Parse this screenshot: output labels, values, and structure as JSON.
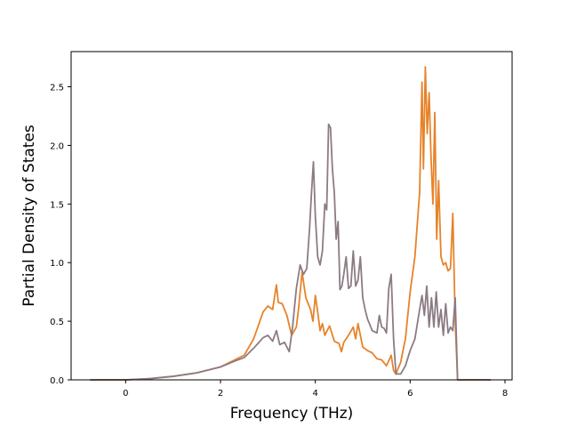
{
  "chart_data": {
    "type": "line",
    "title": "",
    "xlabel": "Frequency (THz)",
    "ylabel": "Partial Density of States",
    "xlim": [
      -1.15,
      8.15
    ],
    "ylim": [
      0.0,
      2.8
    ],
    "xticks": [
      0,
      2,
      4,
      6,
      8
    ],
    "yticks": [
      0.0,
      0.5,
      1.0,
      1.5,
      2.0,
      2.5
    ],
    "xtick_labels": [
      "0",
      "2",
      "4",
      "6",
      "8"
    ],
    "ytick_labels": [
      "0.0",
      "0.5",
      "1.0",
      "1.5",
      "2.0",
      "2.5"
    ],
    "grid": false,
    "legend": "none",
    "series": [
      {
        "color": "#e6832a",
        "x": [
          -0.75,
          0.0,
          0.5,
          1.0,
          1.5,
          2.0,
          2.3,
          2.5,
          2.7,
          2.9,
          3.0,
          3.1,
          3.18,
          3.22,
          3.3,
          3.4,
          3.5,
          3.6,
          3.65,
          3.72,
          3.8,
          3.9,
          3.95,
          4.0,
          4.05,
          4.1,
          4.15,
          4.2,
          4.3,
          4.4,
          4.5,
          4.55,
          4.6,
          4.7,
          4.8,
          4.85,
          4.9,
          5.0,
          5.1,
          5.2,
          5.3,
          5.4,
          5.5,
          5.6,
          5.65,
          5.7,
          5.8,
          5.9,
          6.0,
          6.1,
          6.2,
          6.25,
          6.28,
          6.32,
          6.36,
          6.4,
          6.44,
          6.48,
          6.52,
          6.56,
          6.6,
          6.65,
          6.7,
          6.75,
          6.8,
          6.85,
          6.9,
          6.95,
          7.0,
          7.05,
          7.7
        ],
        "y": [
          0.0,
          0.0,
          0.01,
          0.03,
          0.06,
          0.11,
          0.17,
          0.21,
          0.35,
          0.58,
          0.63,
          0.6,
          0.81,
          0.66,
          0.65,
          0.55,
          0.38,
          0.45,
          0.62,
          0.92,
          0.7,
          0.6,
          0.5,
          0.72,
          0.58,
          0.42,
          0.48,
          0.38,
          0.46,
          0.33,
          0.31,
          0.24,
          0.32,
          0.38,
          0.45,
          0.35,
          0.48,
          0.28,
          0.25,
          0.23,
          0.18,
          0.17,
          0.12,
          0.21,
          0.08,
          0.05,
          0.15,
          0.35,
          0.75,
          1.05,
          1.6,
          2.54,
          1.8,
          2.67,
          2.1,
          2.45,
          1.9,
          1.5,
          2.28,
          1.2,
          1.7,
          1.05,
          0.98,
          1.0,
          0.93,
          0.95,
          1.42,
          0.5,
          0.0,
          0.0,
          0.0
        ]
      },
      {
        "color": "#8c7b83",
        "x": [
          -0.75,
          0.0,
          0.5,
          1.0,
          1.5,
          2.0,
          2.3,
          2.5,
          2.7,
          2.9,
          3.0,
          3.1,
          3.18,
          3.25,
          3.35,
          3.45,
          3.52,
          3.6,
          3.68,
          3.75,
          3.82,
          3.88,
          3.92,
          3.96,
          4.0,
          4.05,
          4.1,
          4.15,
          4.2,
          4.24,
          4.28,
          4.32,
          4.36,
          4.4,
          4.44,
          4.48,
          4.52,
          4.56,
          4.6,
          4.65,
          4.7,
          4.75,
          4.8,
          4.85,
          4.9,
          4.95,
          5.0,
          5.05,
          5.1,
          5.2,
          5.3,
          5.35,
          5.4,
          5.45,
          5.5,
          5.55,
          5.6,
          5.65,
          5.7,
          5.8,
          5.9,
          6.0,
          6.1,
          6.2,
          6.25,
          6.3,
          6.35,
          6.4,
          6.45,
          6.5,
          6.55,
          6.6,
          6.65,
          6.7,
          6.75,
          6.8,
          6.85,
          6.9,
          6.95,
          7.0,
          7.05,
          7.7
        ],
        "y": [
          0.0,
          0.0,
          0.01,
          0.03,
          0.06,
          0.11,
          0.16,
          0.19,
          0.27,
          0.36,
          0.38,
          0.33,
          0.42,
          0.3,
          0.32,
          0.24,
          0.45,
          0.78,
          0.98,
          0.9,
          0.95,
          1.3,
          1.6,
          1.86,
          1.4,
          1.05,
          0.98,
          1.1,
          1.5,
          1.45,
          2.18,
          2.15,
          1.8,
          1.6,
          1.2,
          1.35,
          0.77,
          0.8,
          0.9,
          1.05,
          0.78,
          0.8,
          1.1,
          0.8,
          0.85,
          1.05,
          0.7,
          0.6,
          0.52,
          0.42,
          0.4,
          0.55,
          0.45,
          0.44,
          0.4,
          0.78,
          0.9,
          0.35,
          0.05,
          0.05,
          0.12,
          0.25,
          0.35,
          0.6,
          0.72,
          0.55,
          0.8,
          0.45,
          0.7,
          0.45,
          0.75,
          0.45,
          0.6,
          0.38,
          0.65,
          0.4,
          0.45,
          0.42,
          0.7,
          0.0,
          0.0,
          0.0
        ]
      }
    ]
  }
}
